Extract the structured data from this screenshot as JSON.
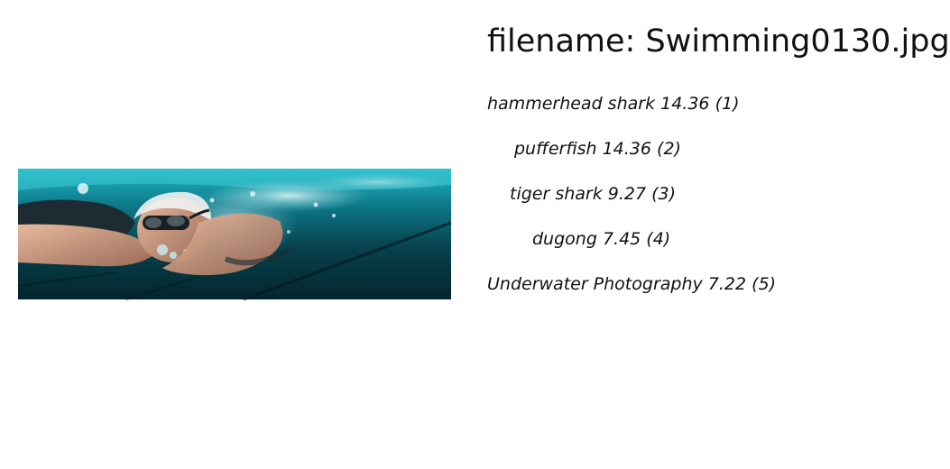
{
  "header": {
    "filename_text": "filename: Swimming0130.jpg"
  },
  "predictions": [
    {
      "label": "hammerhead shark",
      "score": "14.36",
      "rank": "(1)"
    },
    {
      "label": "pufferfish",
      "score": "14.36",
      "rank": "(2)"
    },
    {
      "label": "tiger shark",
      "score": " 9.27",
      "rank": "(3)"
    },
    {
      "label": "dugong",
      "score": " 7.45",
      "rank": "(4)"
    },
    {
      "label": "Underwater Photography",
      "score": " 7.22",
      "rank": "(5)"
    }
  ],
  "colors": {
    "water_light": "#1aa3b3",
    "water_mid": "#0e6f7e",
    "water_deep": "#05323c",
    "skin": "#d9a58a"
  }
}
